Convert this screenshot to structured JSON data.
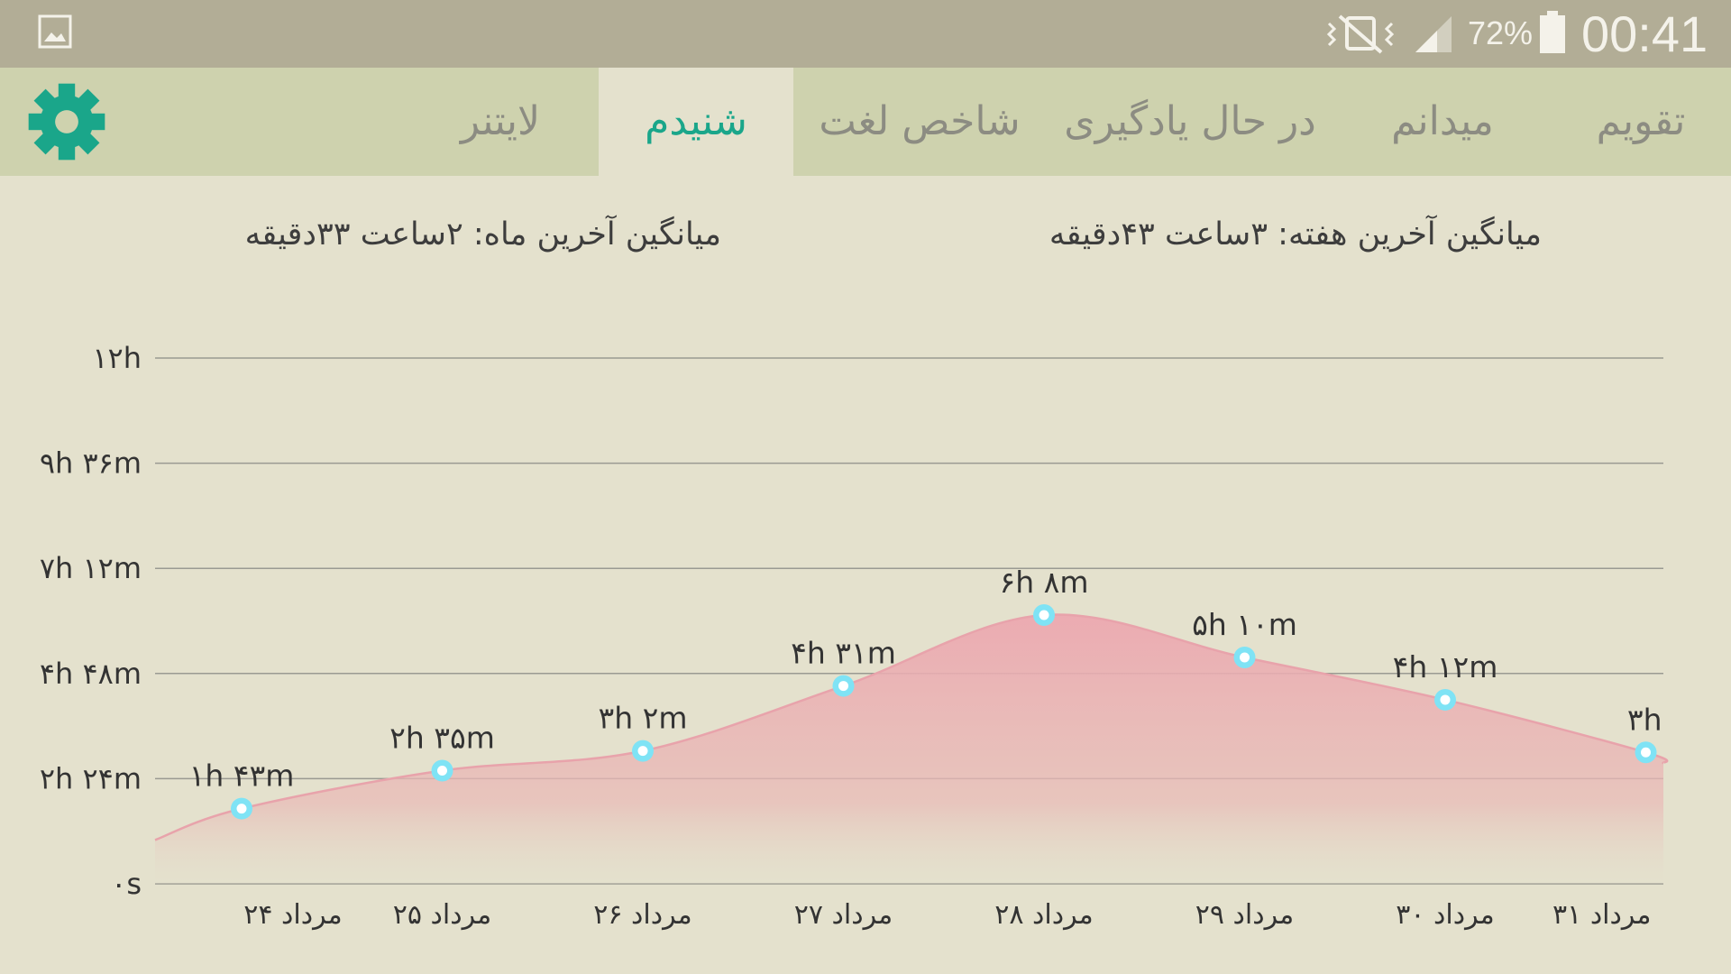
{
  "status_bar": {
    "battery_percent": "72%",
    "time": "00:41",
    "icons": [
      "image-notification-icon",
      "vibrate-off-icon",
      "signal-icon",
      "battery-icon"
    ]
  },
  "tabs": [
    {
      "label": "تقویم",
      "active": false
    },
    {
      "label": "میدانم",
      "active": false
    },
    {
      "label": "در حال یادگیری",
      "active": false
    },
    {
      "label": "شاخص لغت",
      "active": false
    },
    {
      "label": "شنیدم",
      "active": true
    },
    {
      "label": "لایتنر",
      "active": false
    }
  ],
  "settings_icon": "gear-icon",
  "summary": {
    "week": "میانگین آخرین هفته:  ۳ساعت   ۴۳دقیقه",
    "month": "میانگین آخرین ماه:  ۲ساعت   ۳۳دقیقه"
  },
  "colors": {
    "accent": "#1aa68a",
    "tab_bar": "#ced2ae",
    "status_bar": "#b2ad96",
    "background": "#e4e1cd",
    "area_fill": "#eca8b0",
    "line": "#e8a3ab",
    "point": "#7fe3f5"
  },
  "chart_data": {
    "type": "area",
    "yticks": [
      {
        "value": 0,
        "label": "۰s"
      },
      {
        "value": 144,
        "label": "۲h ۲۴m"
      },
      {
        "value": 288,
        "label": "۴h ۴۸m"
      },
      {
        "value": 432,
        "label": "۷h ۱۲m"
      },
      {
        "value": 576,
        "label": "۹h ۳۶m"
      },
      {
        "value": 720,
        "label": "۱۲h"
      }
    ],
    "ylim": [
      0,
      720
    ],
    "y_unit": "minutes",
    "grid": true,
    "points": [
      {
        "x": "۲۴ مرداد",
        "value": 103,
        "label": "۱h ۴۳m"
      },
      {
        "x": "۲۵ مرداد",
        "value": 155,
        "label": "۲h ۳۵m"
      },
      {
        "x": "۲۶ مرداد",
        "value": 182,
        "label": "۳h ۲m"
      },
      {
        "x": "۲۷ مرداد",
        "value": 271,
        "label": "۴h ۳۱m"
      },
      {
        "x": "۲۸ مرداد",
        "value": 368,
        "label": "۶h ۸m"
      },
      {
        "x": "۲۹ مرداد",
        "value": 310,
        "label": "۵h ۱۰m"
      },
      {
        "x": "۳۰ مرداد",
        "value": 252,
        "label": "۴h ۱۲m"
      },
      {
        "x": "۳۱ مرداد",
        "value": 180,
        "label": "۳h"
      }
    ]
  }
}
